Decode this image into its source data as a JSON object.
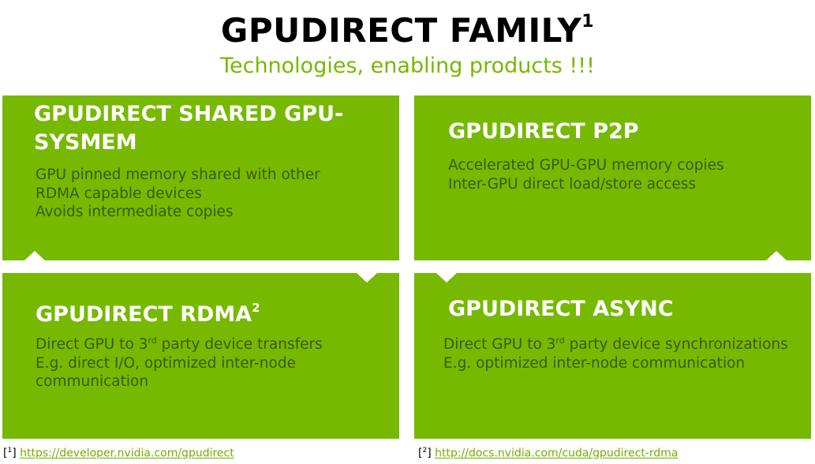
{
  "title": {
    "text": "GPUDIRECT FAMILY",
    "sup": "1"
  },
  "subtitle": "Technologies, enabling products !!!",
  "tiles": [
    {
      "heading_lines": [
        "GPUDIRECT SHARED GPU-",
        "SYSMEM"
      ],
      "body_lines": [
        "GPU pinned memory shared with other",
        "RDMA capable devices",
        "Avoids intermediate copies"
      ]
    },
    {
      "heading": "GPUDIRECT P2P",
      "body_lines": [
        "Accelerated GPU-GPU memory copies",
        "Inter-GPU direct load/store access"
      ]
    },
    {
      "heading": "GPUDIRECT RDMA",
      "heading_sup": "2",
      "body_line1_pre": "Direct GPU to 3",
      "body_line1_sup": "rd",
      "body_line1_post": " party device transfers",
      "body_lines": [
        "E.g. direct I/O, optimized inter-node",
        "communication"
      ]
    },
    {
      "heading": "GPUDIRECT ASYNC",
      "body_line1_pre": "Direct GPU to 3",
      "body_line1_sup": "rd",
      "body_line1_post": " party device synchronizations",
      "body_lines": [
        "E.g. optimized inter-node communication"
      ]
    }
  ],
  "footnotes": [
    {
      "marker": "1",
      "url": "https://developer.nvidia.com/gpudirect"
    },
    {
      "marker": "2",
      "url": "http://docs.nvidia.com/cuda/gpudirect-rdma"
    }
  ],
  "colors": {
    "accent": "#76b900",
    "heading": "#ffffff",
    "body_text": "#3a5a00",
    "link": "#6fae00"
  }
}
